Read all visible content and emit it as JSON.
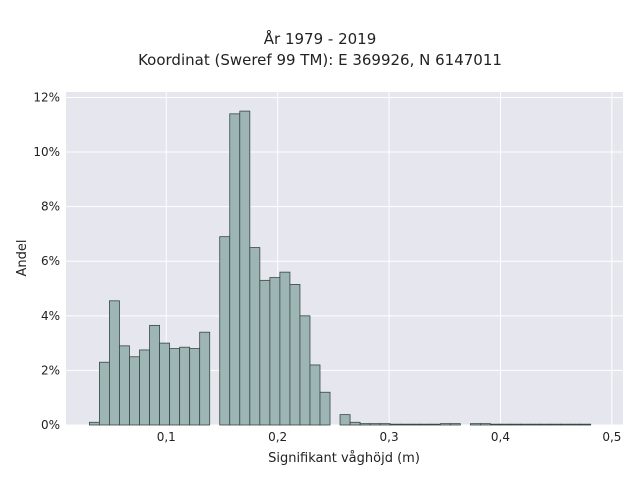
{
  "chart_data": {
    "type": "bar",
    "title": "År 1979 - 2019",
    "subtitle": "Koordinat (Sweref 99 TM): E 369926, N 6147011",
    "xlabel": "Signifikant våghöjd (m)",
    "ylabel": "Andel",
    "xlim": [
      0.01,
      0.51
    ],
    "ylim": [
      0,
      0.122
    ],
    "x_ticks": [
      0.1,
      0.2,
      0.3,
      0.4,
      0.5
    ],
    "x_tick_labels": [
      "0,1",
      "0,2",
      "0,3",
      "0,4",
      "0,5"
    ],
    "y_ticks": [
      0,
      0.02,
      0.04,
      0.06,
      0.08,
      0.1,
      0.12
    ],
    "y_tick_labels": [
      "0%",
      "2%",
      "4%",
      "6%",
      "8%",
      "10%",
      "12%"
    ],
    "grid": true,
    "bin_width": 0.009,
    "bin_start": 0.031,
    "values": [
      0.001,
      0.023,
      0.0455,
      0.029,
      0.025,
      0.0275,
      0.0365,
      0.03,
      0.028,
      0.0285,
      0.028,
      0.034,
      0.0,
      0.069,
      0.114,
      0.115,
      0.065,
      0.053,
      0.054,
      0.056,
      0.0515,
      0.04,
      0.022,
      0.012,
      0.0,
      0.0038,
      0.001,
      0.0005,
      0.0005,
      0.0005,
      0.0003,
      0.0003,
      0.0003,
      0.0003,
      0.0003,
      0.0005,
      0.0005,
      0.0,
      0.0005,
      0.0005,
      0.0003,
      0.0003,
      0.0003,
      0.0003,
      0.0003,
      0.0003,
      0.0003,
      0.0003,
      0.0003,
      0.0003
    ],
    "colors": {
      "plot_background": "#e5e6ee",
      "grid": "#ffffff",
      "bar_fill": "#9db5b4",
      "bar_edge": "#37473f"
    }
  }
}
